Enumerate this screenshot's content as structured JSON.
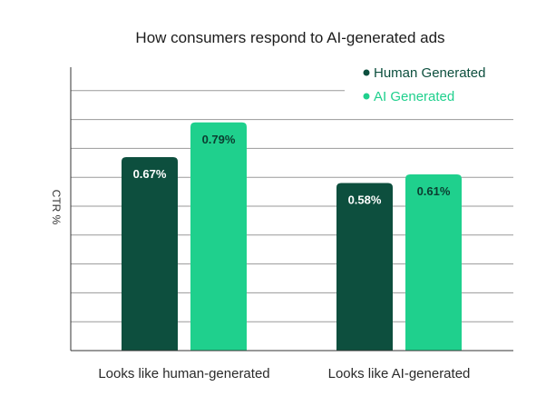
{
  "chart_data": {
    "type": "bar",
    "title": "How consumers respond to AI-generated ads",
    "xlabel": "",
    "ylabel": "CTR %",
    "categories": [
      "Looks like human-generated",
      "Looks like AI-generated"
    ],
    "series": [
      {
        "name": "Human Generated",
        "values": [
          0.67,
          0.58
        ],
        "labels": [
          "0.67%",
          "0.58%"
        ],
        "color": "#0d4f3e",
        "label_color": "#ffffff"
      },
      {
        "name": "AI Generated",
        "values": [
          0.79,
          0.61
        ],
        "labels": [
          "0.79%",
          "0.61%"
        ],
        "color": "#1fd08d",
        "label_color": "#0b3d30"
      }
    ],
    "ylim": [
      0,
      1.0
    ],
    "gridlines": 10,
    "grid": true,
    "legend": "top-right"
  }
}
